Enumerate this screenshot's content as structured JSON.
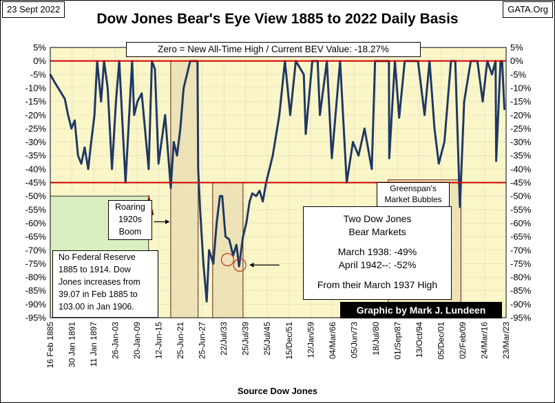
{
  "header": {
    "date": "23 Sept 2022",
    "site": "GATA.Org",
    "title": "Dow Jones Bear's Eye View 1885 to 2022 Daily Basis"
  },
  "chart_data": {
    "type": "line",
    "title": "Dow Jones Bear's Eye View 1885 to 2022 Daily Basis",
    "xlabel": "Source Dow Jones",
    "ylabel": "",
    "ylim": [
      -95,
      5
    ],
    "y_ticks": [
      "5%",
      "0%",
      "-5%",
      "-10%",
      "-15%",
      "-20%",
      "-25%",
      "-30%",
      "-35%",
      "-40%",
      "-45%",
      "-50%",
      "-55%",
      "-60%",
      "-65%",
      "-70%",
      "-75%",
      "-80%",
      "-85%",
      "-90%",
      "-95%"
    ],
    "x_tick_labels": [
      "16 Feb 1885",
      "30 Jan 1891",
      "11 Jan 1897",
      "26-Jan-03",
      "20-Jan-09",
      "12-Jun-15",
      "25-Jun-21",
      "25-Jun-27",
      "22/Jul/33",
      "25/Jul/39",
      "25/Jul/45",
      "15/Dec/51",
      "12/Jan/59",
      "04/Mar/66",
      "05/Jun/73",
      "18/Jul/80",
      "01/Sep/87",
      "13/Oct/94",
      "05/Dec/01",
      "02/Feb/09",
      "24/Mar/16",
      "23/Mar/23"
    ],
    "reference_lines": [
      {
        "y": 0,
        "label": "New All-Time High"
      },
      {
        "y": -45,
        "label": "-45%"
      }
    ],
    "series": [
      {
        "name": "Dow Jones BEV",
        "x": [
          1885.1,
          1886.5,
          1887.5,
          1888.5,
          1889.5,
          1890.5,
          1891.5,
          1892.5,
          1893.5,
          1894.5,
          1895.5,
          1896.6,
          1897.5,
          1898.5,
          1899.3,
          1900.5,
          1901.4,
          1902.5,
          1903.8,
          1905.0,
          1906.0,
          1907.9,
          1909.9,
          1910.5,
          1911.5,
          1912.8,
          1914.9,
          1915.9,
          1916.8,
          1917.9,
          1919.9,
          1921.6,
          1922.5,
          1923.5,
          1924.5,
          1925.5,
          1926.5,
          1927.5,
          1928.5,
          1929.7,
          1929.9,
          1930.5,
          1931.5,
          1932.5,
          1933.2,
          1934.5,
          1935.5,
          1936.5,
          1937.2,
          1938.2,
          1939.3,
          1940.5,
          1941.5,
          1942.3,
          1943.5,
          1944.5,
          1945.5,
          1946.3,
          1947.5,
          1948.5,
          1949.5,
          1950.5,
          1952.5,
          1954.5,
          1956.2,
          1957.8,
          1959.5,
          1961.9,
          1962.5,
          1964.5,
          1966.1,
          1966.8,
          1968.9,
          1970.4,
          1972.9,
          1974.9,
          1976.8,
          1978.5,
          1980.3,
          1982.5,
          1983.5,
          1985.5,
          1987.7,
          1987.8,
          1989.5,
          1990.8,
          1992.5,
          1994.5,
          1996.5,
          1998.5,
          2000.0,
          2001.5,
          2002.8,
          2004.5,
          2006.5,
          2007.8,
          2009.2,
          2010.5,
          2012.5,
          2014.5,
          2016.1,
          2017.5,
          2018.9,
          2020.0,
          2020.2,
          2021.5,
          2022.0,
          2022.7
        ],
        "values": [
          -5,
          -8,
          -10,
          -12,
          -14,
          -20,
          -25,
          -22,
          -35,
          -38,
          -32,
          -40,
          -30,
          -20,
          0,
          -15,
          0,
          -10,
          -40,
          -15,
          0,
          -45,
          0,
          -20,
          -15,
          -12,
          -40,
          0,
          -3,
          -38,
          -20,
          -47,
          -30,
          -35,
          -25,
          -10,
          -5,
          0,
          0,
          0,
          -40,
          -55,
          -75,
          -89,
          -70,
          -75,
          -60,
          -50,
          -50,
          -65,
          -66,
          -72,
          -68,
          -76,
          -65,
          -60,
          -52,
          -49,
          -50,
          -48,
          -52,
          -45,
          -35,
          -20,
          0,
          -20,
          0,
          -5,
          -27,
          0,
          0,
          -20,
          0,
          -36,
          0,
          -45,
          -30,
          -35,
          -25,
          -40,
          0,
          0,
          0,
          -36,
          0,
          -21,
          0,
          0,
          0,
          -20,
          0,
          -25,
          -38,
          -30,
          0,
          0,
          -54,
          -15,
          0,
          0,
          -15,
          0,
          -5,
          0,
          -37,
          0,
          0,
          -18
        ]
      }
    ],
    "annotations": [
      "Zero = New All-Time High / Current BEV Value: -18.27%",
      "Roaring 1920s Boom",
      "No Federal Reserve 1885 to 1914.  Dow Jones increases from 39.07 in Feb 1885 to 103.00 in Jan 1906.",
      "Greenspan's Market Bubbles",
      "Two Dow Jones Bear Markets",
      "March 1938: -49%",
      "April 1942--: -52%",
      "From their March 1937 High",
      "Graphic by Mark J. Lundeen"
    ]
  },
  "notes": {
    "zero_line": "Zero = New All-Time High / Current BEV Value: -18.27%",
    "roaring": [
      "Roaring",
      "1920s",
      "Boom"
    ],
    "fed": [
      "No Federal Reserve",
      "1885 to 1914.  Dow",
      "Jones increases from",
      "39.07 in Feb 1885 to",
      "103.00 in Jan 1906."
    ],
    "greenspan": [
      "Greenspan's",
      "Market Bubbles"
    ],
    "bear_title": [
      "Two Dow Jones",
      "Bear Markets"
    ],
    "bear_1938": "March 1938: -49%",
    "bear_1942": "April 1942--: -52%",
    "bear_from": "From their March 1937 High",
    "credit": "Graphic by Mark J. Lundeen",
    "source": "Source Dow Jones"
  },
  "colors": {
    "plot_bg": "#fbf6c8",
    "series": "#1f3864",
    "ref_line": "#cc0000",
    "box_fill": "#e8dcb0",
    "green_box": "#d9efc0",
    "marker": "#7b1010",
    "circle": "#c0392b",
    "credit_bg": "#000000",
    "credit_fg": "#ffffff"
  }
}
